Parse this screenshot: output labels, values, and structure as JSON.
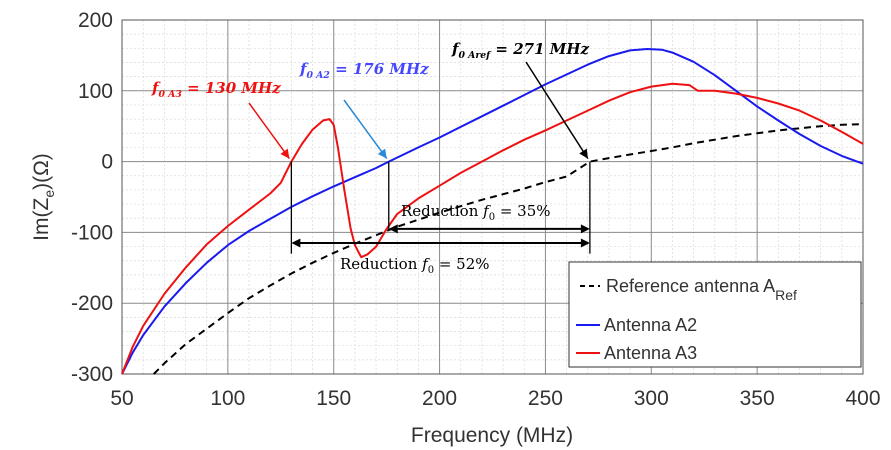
{
  "chart_data": {
    "type": "line",
    "xlabel": "Frequency (MHz)",
    "ylabel": "Im(Z",
    "ylabel_sub": "e",
    "ylabel_tail": ")(Ω)",
    "xlim": [
      50,
      400
    ],
    "ylim": [
      -300,
      200
    ],
    "x_ticks": [
      50,
      100,
      150,
      200,
      250,
      300,
      350,
      400
    ],
    "y_ticks": [
      -300,
      -200,
      -100,
      0,
      100,
      200
    ],
    "x_tick_labels": [
      "50",
      "100",
      "150",
      "200",
      "250",
      "300",
      "350",
      "400"
    ],
    "y_tick_labels": [
      "-300",
      "-200",
      "-100",
      "0",
      "100",
      "200"
    ],
    "grid": true,
    "minor_grid": true,
    "legend_position": "bottom-right",
    "series": [
      {
        "name": "Reference antenna A",
        "name_sub": "Ref",
        "color": "#000000",
        "style": "dashed",
        "x": [
          65,
          70,
          80,
          90,
          100,
          110,
          120,
          130,
          140,
          150,
          160,
          170,
          180,
          190,
          200,
          210,
          220,
          230,
          240,
          250,
          260,
          271,
          280,
          290,
          300,
          310,
          320,
          330,
          340,
          350,
          360,
          370,
          380,
          390,
          400
        ],
        "y": [
          -300,
          -285,
          -258,
          -236,
          -214,
          -193,
          -175,
          -158,
          -143,
          -129,
          -116,
          -104,
          -92,
          -82,
          -72,
          -63,
          -54,
          -46,
          -38,
          -29,
          -21,
          0,
          5,
          10,
          15,
          20,
          26,
          31,
          36,
          40,
          44,
          47,
          50,
          52,
          53
        ]
      },
      {
        "name": "Antenna A2",
        "color": "#1a1aee",
        "style": "solid",
        "x": [
          50,
          55,
          60,
          70,
          80,
          90,
          100,
          110,
          120,
          130,
          140,
          150,
          160,
          170,
          176,
          190,
          200,
          210,
          220,
          230,
          240,
          250,
          260,
          270,
          280,
          290,
          298,
          305,
          310,
          320,
          330,
          340,
          350,
          360,
          370,
          380,
          390,
          400
        ],
        "y": [
          -300,
          -270,
          -245,
          -205,
          -172,
          -143,
          -118,
          -98,
          -81,
          -64,
          -49,
          -35,
          -22,
          -9,
          0,
          20,
          34,
          49,
          64,
          79,
          94,
          109,
          123,
          137,
          149,
          157,
          159,
          158,
          154,
          141,
          122,
          100,
          78,
          58,
          39,
          22,
          8,
          -3
        ]
      },
      {
        "name": "Antenna A3",
        "color": "#ee1111",
        "style": "solid",
        "x": [
          50,
          55,
          60,
          70,
          80,
          90,
          100,
          110,
          120,
          125,
          130,
          135,
          140,
          145,
          148,
          150,
          152,
          155,
          158,
          160,
          163,
          166,
          170,
          175,
          180,
          190,
          200,
          210,
          220,
          230,
          240,
          250,
          260,
          270,
          280,
          290,
          300,
          310,
          318,
          322,
          330,
          340,
          350,
          360,
          370,
          380,
          390,
          400
        ],
        "y": [
          -300,
          -262,
          -232,
          -187,
          -150,
          -117,
          -91,
          -68,
          -45,
          -30,
          0,
          25,
          45,
          58,
          60,
          52,
          20,
          -40,
          -95,
          -118,
          -135,
          -131,
          -120,
          -95,
          -74,
          -52,
          -34,
          -16,
          0,
          16,
          31,
          44,
          58,
          72,
          86,
          98,
          106,
          110,
          108,
          100,
          100,
          96,
          90,
          82,
          72,
          58,
          42,
          25
        ]
      }
    ],
    "annotations": {
      "f0_a3": {
        "base": "f",
        "sub": "0 A3",
        "text": " = 130 MHz",
        "color": "#ee1111",
        "x": 130
      },
      "f0_a2": {
        "base": "f",
        "sub": "0 A2",
        "text": " = 176 MHz",
        "color": "#4646ff",
        "x": 176
      },
      "f0_aref": {
        "base": "f",
        "sub": "0 Aref",
        "text": " = 271 MHz",
        "color": "#000000",
        "x": 271
      },
      "reduction_35": {
        "prefix": "Reduction ",
        "var": "f",
        "sub": "0",
        "text": " = 35%"
      },
      "reduction_52": {
        "prefix": "Reduction ",
        "var": "f",
        "sub": "0",
        "text": " = 52%"
      }
    }
  }
}
